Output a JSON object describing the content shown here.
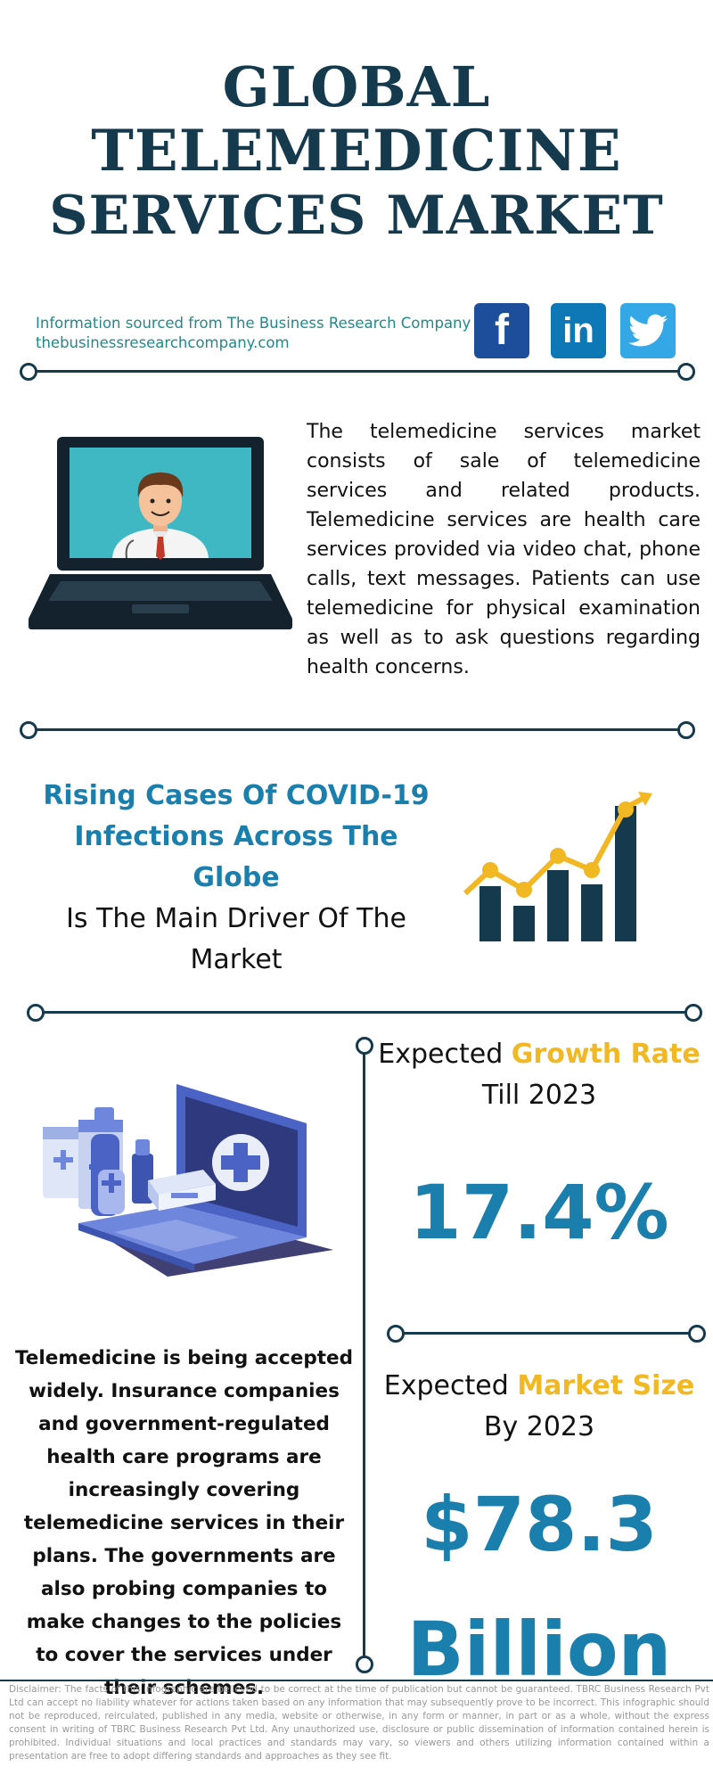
{
  "title": {
    "line1": "GLOBAL",
    "line2": "TELEMEDICINE",
    "line3": "SERVICES MARKET"
  },
  "source": {
    "line1": "Information sourced from The Business Research Company",
    "line2": "thebusinessresearchcompany.com"
  },
  "social": [
    {
      "icon": "facebook-icon",
      "glyph": "f",
      "color": "#1d4e9b"
    },
    {
      "icon": "linkedin-icon",
      "glyph": "in",
      "color": "#0e77b5"
    },
    {
      "icon": "twitter-icon",
      "glyph": "twitter",
      "color": "#34a8e6"
    }
  ],
  "description": "The telemedicine services market consists of sale of telemedicine services and related products. Telemedicine services are health care services provided via video chat, phone calls, text messages. Patients can use telemedicine for physical examination as well as to ask questions regarding health concerns.",
  "driver": {
    "highlight1": "Rising Cases Of COVID-19",
    "highlight2": "Infections Across The Globe",
    "rest1": "Is The Main Driver Of The",
    "rest2": "Market"
  },
  "growth": {
    "prefix": "Expected ",
    "emphasis": "Growth Rate",
    "suffix": "Till 2023",
    "value": "17.4%"
  },
  "market_size": {
    "prefix": "Expected ",
    "emphasis": "Market Size",
    "suffix": "By 2023",
    "value_line1": "$78.3",
    "value_line2": "Billion"
  },
  "adoption_text": "Telemedicine is being accepted widely. Insurance companies and government-regulated health care programs are increasingly covering telemedicine services in their plans. The governments are also probing companies to make changes to the policies to cover the services under their schemes.",
  "disclaimer": "Disclaimer: The facts of this infographic are believed to be correct at the time of publication but cannot be guaranteed. TBRC Business Research Pvt Ltd can accept no liability whatever for actions taken based on any information that may subsequently prove to be incorrect. This infographic should not be reproduced, reirculated, published in any media, website or otherwise, in any form or manner, in part or as a whole, without the express consent in writing of TBRC Business Research Pvt Ltd. Any unauthorized use, disclosure or public dissemination of information contained herein is prohibited. Individual situations and local practices and standards may vary, so viewers and others utilizing information contained within a presentation are free to adopt differing standards and approaches as they see fit.",
  "colors": {
    "navy": "#153a4d",
    "blue": "#1b7fae",
    "yellow": "#f2b824",
    "teal": "#1f8a8a"
  }
}
